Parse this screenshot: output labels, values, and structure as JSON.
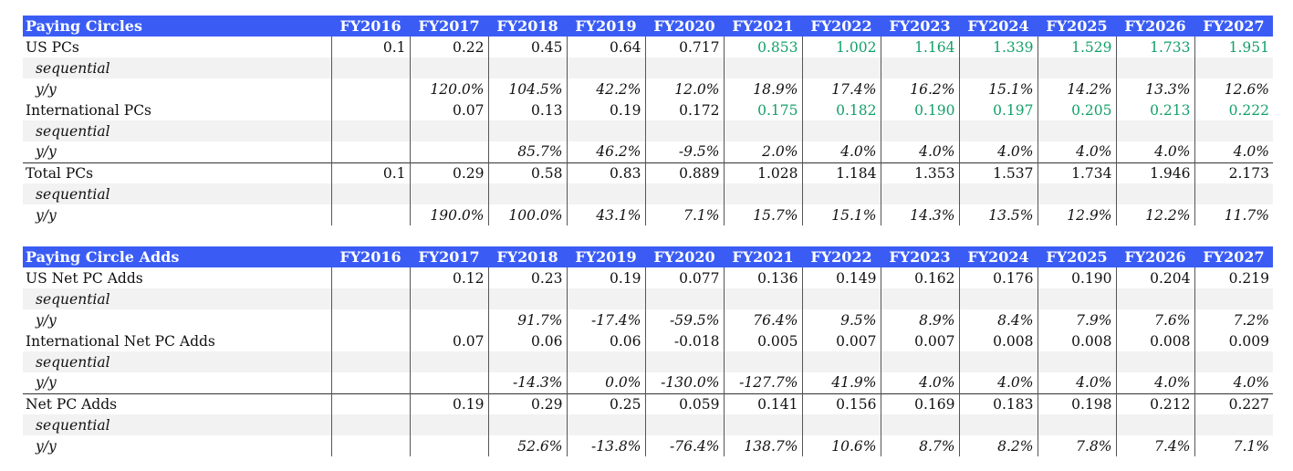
{
  "years": [
    "FY2016",
    "FY2017",
    "FY2018",
    "FY2019",
    "FY2020",
    "FY2021",
    "FY2022",
    "FY2023",
    "FY2024",
    "FY2025",
    "FY2026",
    "FY2027"
  ],
  "colors": {
    "header_bg": "#3a5cf5",
    "header_text": "#ffffff",
    "forecast_green": "#14a06a",
    "sub_row_bg": "#f2f2f2"
  },
  "tables": [
    {
      "title": "Paying Circles",
      "groups": [
        {
          "label": "US PCs",
          "values": [
            "0.1",
            "0.22",
            "0.45",
            "0.64",
            "0.717",
            "0.853",
            "1.002",
            "1.164",
            "1.339",
            "1.529",
            "1.733",
            "1.951"
          ],
          "green_from": 5,
          "sequential_label": "sequential",
          "yy_label": "y/y",
          "yy": [
            "",
            "120.0%",
            "104.5%",
            "42.2%",
            "12.0%",
            "18.9%",
            "17.4%",
            "16.2%",
            "15.1%",
            "14.2%",
            "13.3%",
            "12.6%"
          ]
        },
        {
          "label": "International PCs",
          "values": [
            "",
            "0.07",
            "0.13",
            "0.19",
            "0.172",
            "0.175",
            "0.182",
            "0.190",
            "0.197",
            "0.205",
            "0.213",
            "0.222"
          ],
          "green_from": 5,
          "sequential_label": "sequential",
          "yy_label": "y/y",
          "yy": [
            "",
            "",
            "85.7%",
            "46.2%",
            "-9.5%",
            "2.0%",
            "4.0%",
            "4.0%",
            "4.0%",
            "4.0%",
            "4.0%",
            "4.0%"
          ]
        },
        {
          "label": "Total PCs",
          "values": [
            "0.1",
            "0.29",
            "0.58",
            "0.83",
            "0.889",
            "1.028",
            "1.184",
            "1.353",
            "1.537",
            "1.734",
            "1.946",
            "2.173"
          ],
          "green_from": -1,
          "sequential_label": "sequential",
          "yy_label": "y/y",
          "yy": [
            "",
            "190.0%",
            "100.0%",
            "43.1%",
            "7.1%",
            "15.7%",
            "15.1%",
            "14.3%",
            "13.5%",
            "12.9%",
            "12.2%",
            "11.7%"
          ],
          "top_border": true
        }
      ]
    },
    {
      "title": "Paying Circle Adds",
      "groups": [
        {
          "label": "US Net PC Adds",
          "values": [
            "",
            "0.12",
            "0.23",
            "0.19",
            "0.077",
            "0.136",
            "0.149",
            "0.162",
            "0.176",
            "0.190",
            "0.204",
            "0.219"
          ],
          "green_from": -1,
          "sequential_label": "sequential",
          "yy_label": "y/y",
          "yy": [
            "",
            "",
            "91.7%",
            "-17.4%",
            "-59.5%",
            "76.4%",
            "9.5%",
            "8.9%",
            "8.4%",
            "7.9%",
            "7.6%",
            "7.2%"
          ]
        },
        {
          "label": "International Net PC Adds",
          "values": [
            "",
            "0.07",
            "0.06",
            "0.06",
            "-0.018",
            "0.005",
            "0.007",
            "0.007",
            "0.008",
            "0.008",
            "0.008",
            "0.009"
          ],
          "green_from": -1,
          "sequential_label": "sequential",
          "yy_label": "y/y",
          "yy": [
            "",
            "",
            "-14.3%",
            "0.0%",
            "-130.0%",
            "-127.7%",
            "41.9%",
            "4.0%",
            "4.0%",
            "4.0%",
            "4.0%",
            "4.0%"
          ]
        },
        {
          "label": "Net PC Adds",
          "values": [
            "",
            "0.19",
            "0.29",
            "0.25",
            "0.059",
            "0.141",
            "0.156",
            "0.169",
            "0.183",
            "0.198",
            "0.212",
            "0.227"
          ],
          "green_from": -1,
          "sequential_label": "sequential",
          "yy_label": "y/y",
          "yy": [
            "",
            "",
            "52.6%",
            "-13.8%",
            "-76.4%",
            "138.7%",
            "10.6%",
            "8.7%",
            "8.2%",
            "7.8%",
            "7.4%",
            "7.1%"
          ],
          "top_border": true
        }
      ]
    }
  ]
}
